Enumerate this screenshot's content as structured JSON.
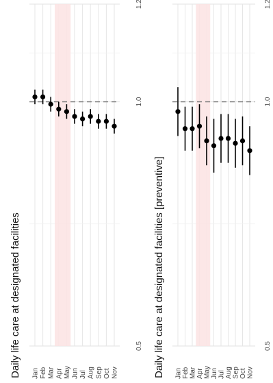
{
  "chart_data": [
    {
      "type": "scatter",
      "title": "Daily life care at designated facilities",
      "xlabel": "",
      "ylabel": "",
      "categories": [
        "Jan",
        "Feb",
        "Mar",
        "Apr",
        "May",
        "Jun",
        "Jul",
        "Aug",
        "Sep",
        "Oct",
        "Nov"
      ],
      "values": [
        1.01,
        1.01,
        0.995,
        0.985,
        0.98,
        0.97,
        0.965,
        0.97,
        0.96,
        0.96,
        0.95
      ],
      "lower": [
        0.995,
        0.995,
        0.98,
        0.97,
        0.965,
        0.955,
        0.95,
        0.955,
        0.945,
        0.945,
        0.935
      ],
      "upper": [
        1.025,
        1.025,
        1.01,
        1.0,
        0.995,
        0.985,
        0.98,
        0.985,
        0.975,
        0.975,
        0.965
      ],
      "ylim": [
        0.5,
        1.2
      ],
      "yticks": [
        "0.5",
        "1.0",
        "1.2"
      ],
      "reference_line": 1.0,
      "highlight_band": [
        "Apr",
        "May"
      ],
      "grid": true,
      "orientation": "rotated",
      "colors": {
        "point": "#000000",
        "band": "#fbe3e3",
        "reference": "#7a7a7a",
        "grid": "#e6e6e6"
      }
    },
    {
      "type": "scatter",
      "title": "Daily life care at designated facilities [preventive]",
      "xlabel": "",
      "ylabel": "",
      "categories": [
        "Jan",
        "Feb",
        "Mar",
        "Apr",
        "May",
        "Jun",
        "Jul",
        "Aug",
        "Sep",
        "Oct",
        "Nov"
      ],
      "values": [
        0.98,
        0.945,
        0.945,
        0.95,
        0.92,
        0.91,
        0.925,
        0.925,
        0.915,
        0.92,
        0.9
      ],
      "lower": [
        0.93,
        0.9,
        0.9,
        0.905,
        0.87,
        0.855,
        0.875,
        0.875,
        0.865,
        0.87,
        0.85
      ],
      "upper": [
        1.03,
        0.99,
        0.99,
        0.995,
        0.97,
        0.965,
        0.975,
        0.975,
        0.965,
        0.97,
        0.95
      ],
      "ylim": [
        0.5,
        1.2
      ],
      "yticks": [
        "0.5",
        "1.0",
        "1.2"
      ],
      "reference_line": 1.0,
      "highlight_band": [
        "Apr",
        "May"
      ],
      "grid": true,
      "orientation": "rotated",
      "colors": {
        "point": "#000000",
        "band": "#fbe3e3",
        "reference": "#7a7a7a",
        "grid": "#e6e6e6"
      }
    }
  ]
}
